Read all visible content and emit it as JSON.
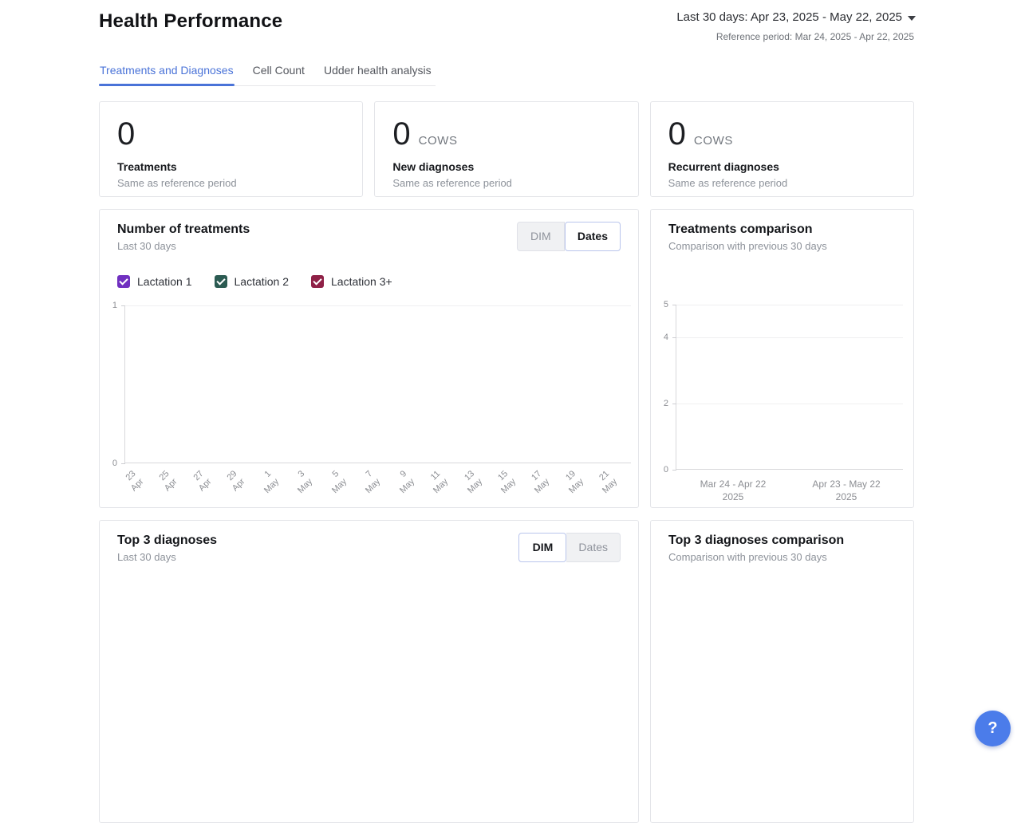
{
  "colors": {
    "accent_blue": "#4a73d8",
    "help_button_blue": "#4b7cea",
    "lactation1": "#7030c0",
    "lactation2": "#2b5b52",
    "lactation3": "#8f2147"
  },
  "header": {
    "title": "Health Performance",
    "period_selector": "Last 30 days: Apr 23, 2025 - May 22, 2025",
    "reference_period": "Reference period: Mar 24, 2025 - Apr 22, 2025"
  },
  "tabs": [
    {
      "label": "Treatments and Diagnoses",
      "active": true
    },
    {
      "label": "Cell Count",
      "active": false
    },
    {
      "label": "Udder health analysis",
      "active": false
    }
  ],
  "stat_cards": [
    {
      "value": "0",
      "unit": "",
      "label": "Treatments",
      "sub": "Same as reference period"
    },
    {
      "value": "0",
      "unit": "COWS",
      "label": "New diagnoses",
      "sub": "Same as reference period"
    },
    {
      "value": "0",
      "unit": "COWS",
      "label": "Recurrent diagnoses",
      "sub": "Same as reference period"
    }
  ],
  "cards": {
    "treatments": {
      "title": "Number of treatments",
      "subtitle": "Last 30 days",
      "toggle": [
        "DIM",
        "Dates"
      ],
      "toggle_selected": "Dates"
    },
    "comparison": {
      "title": "Treatments comparison",
      "subtitle": "Comparison with previous 30 days"
    },
    "top3": {
      "title": "Top 3 diagnoses",
      "subtitle": "Last 30 days",
      "toggle": [
        "DIM",
        "Dates"
      ],
      "toggle_selected": "DIM"
    },
    "top3_comparison": {
      "title": "Top 3 diagnoses comparison",
      "subtitle": "Comparison with previous 30 days"
    }
  },
  "legend": [
    {
      "label": "Lactation 1",
      "color": "#7030c0",
      "checked": true
    },
    {
      "label": "Lactation 2",
      "color": "#2b5b52",
      "checked": true
    },
    {
      "label": "Lactation 3+",
      "color": "#8f2147",
      "checked": true
    }
  ],
  "chart_data": [
    {
      "id": "number_of_treatments",
      "type": "bar",
      "title": "Number of treatments",
      "subtitle": "Last 30 days",
      "ylim": [
        0,
        1
      ],
      "y_ticks": [
        1,
        0
      ],
      "grid": true,
      "x_tick_labels": [
        [
          "23",
          "Apr"
        ],
        [
          "25",
          "Apr"
        ],
        [
          "27",
          "Apr"
        ],
        [
          "29",
          "Apr"
        ],
        [
          "1",
          "May"
        ],
        [
          "3",
          "May"
        ],
        [
          "5",
          "May"
        ],
        [
          "7",
          "May"
        ],
        [
          "9",
          "May"
        ],
        [
          "11",
          "May"
        ],
        [
          "13",
          "May"
        ],
        [
          "15",
          "May"
        ],
        [
          "17",
          "May"
        ],
        [
          "19",
          "May"
        ],
        [
          "21",
          "May"
        ]
      ],
      "series": [
        {
          "name": "Lactation 1",
          "color": "#7030c0",
          "values": []
        },
        {
          "name": "Lactation 2",
          "color": "#2b5b52",
          "values": []
        },
        {
          "name": "Lactation 3+",
          "color": "#8f2147",
          "values": []
        }
      ]
    },
    {
      "id": "treatments_comparison",
      "type": "bar",
      "title": "Treatments comparison",
      "subtitle": "Comparison with previous 30 days",
      "ylim": [
        0,
        5
      ],
      "y_ticks": [
        5,
        4,
        2,
        0
      ],
      "grid": true,
      "x_tick_labels": [
        [
          "Mar 24 - Apr 22",
          "2025"
        ],
        [
          "Apr 23 - May 22",
          "2025"
        ]
      ],
      "series": []
    }
  ],
  "help_button": {
    "label": "?"
  }
}
